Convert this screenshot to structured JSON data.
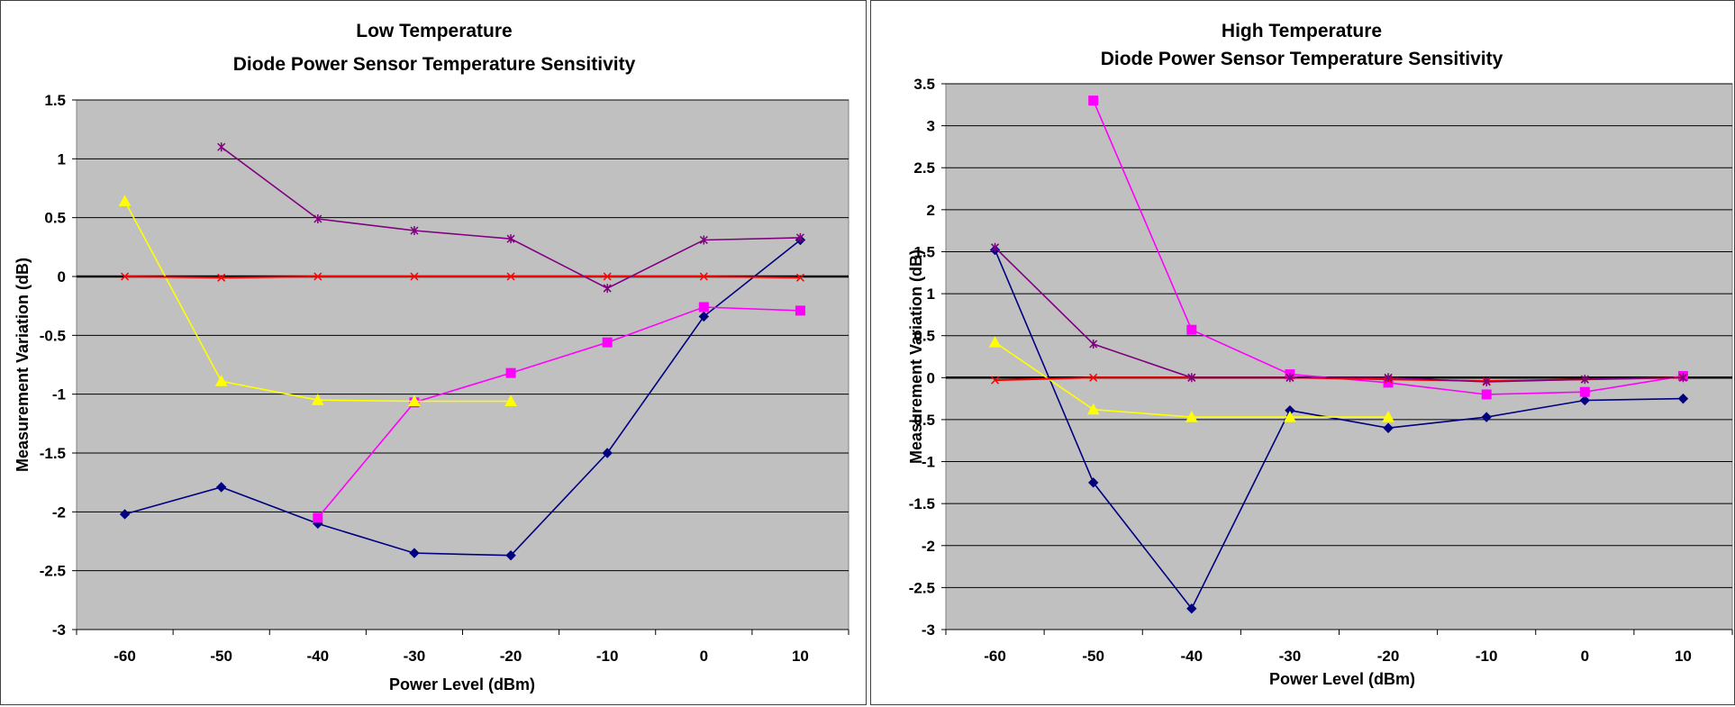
{
  "chart_data": [
    {
      "type": "line",
      "title_line1": "Low Temperature",
      "title_line2": "Diode Power Sensor Temperature Sensitivity",
      "xlabel": "Power Level (dBm)",
      "ylabel": "Measurement Variation (dB)",
      "x": [
        -60,
        -50,
        -40,
        -30,
        -20,
        -10,
        0,
        10
      ],
      "x_tick_labels": [
        "-60",
        "-50",
        "-40",
        "-30",
        "-20",
        "-10",
        "0",
        "10"
      ],
      "ylim": [
        -3,
        1.5
      ],
      "y_ticks": [
        -3,
        -2.5,
        -2,
        -1.5,
        -1,
        -0.5,
        0,
        0.5,
        1,
        1.5
      ],
      "y_tick_labels": [
        "-3",
        "-2.5",
        "-2",
        "-1.5",
        "-1",
        "-0.5",
        "0",
        "0.5",
        "1",
        "1.5"
      ],
      "grid": true,
      "background_color": "#c0c0c0",
      "series": [
        {
          "color": "#000080",
          "marker": "diamond",
          "values": [
            -2.02,
            -1.79,
            -2.1,
            -2.35,
            -2.37,
            -1.5,
            -0.34,
            0.31
          ]
        },
        {
          "color": "#ff00ff",
          "marker": "square",
          "values": [
            null,
            null,
            -2.05,
            -1.07,
            -0.82,
            -0.56,
            -0.26,
            -0.29
          ]
        },
        {
          "color": "#ffff00",
          "marker": "triangle",
          "values": [
            0.64,
            -0.89,
            -1.05,
            -1.06,
            -1.06,
            null,
            null,
            null
          ]
        },
        {
          "color": "#ff0000",
          "marker": "x",
          "values": [
            0,
            -0.01,
            0,
            0,
            0,
            0,
            0,
            -0.01
          ]
        },
        {
          "color": "#800080",
          "marker": "star",
          "values": [
            null,
            1.1,
            0.49,
            0.39,
            0.32,
            -0.1,
            0.31,
            0.33
          ]
        }
      ]
    },
    {
      "type": "line",
      "title_line1": "High Temperature",
      "title_line2": "Diode Power Sensor Temperature Sensitivity",
      "xlabel": "Power Level (dBm)",
      "ylabel": "Measurement Variation (dB)",
      "x": [
        -60,
        -50,
        -40,
        -30,
        -20,
        -10,
        0,
        10
      ],
      "x_tick_labels": [
        "-60",
        "-50",
        "-40",
        "-30",
        "-20",
        "-10",
        "0",
        "10"
      ],
      "ylim": [
        -3,
        3.5
      ],
      "y_ticks": [
        -3,
        -2.5,
        -2,
        -1.5,
        -1,
        -0.5,
        0,
        0.5,
        1,
        1.5,
        2,
        2.5,
        3,
        3.5
      ],
      "y_tick_labels": [
        "-3",
        "-2.5",
        "-2",
        "-1.5",
        "-1",
        "-0.5",
        "0",
        "0.5",
        "1",
        "1.5",
        "2",
        "2.5",
        "3",
        "3.5"
      ],
      "grid": true,
      "background_color": "#c0c0c0",
      "series": [
        {
          "color": "#000080",
          "marker": "diamond",
          "values": [
            1.52,
            -1.25,
            -2.75,
            -0.39,
            -0.6,
            -0.47,
            -0.27,
            -0.25
          ]
        },
        {
          "color": "#ff00ff",
          "marker": "square",
          "values": [
            null,
            3.3,
            0.57,
            0.04,
            -0.06,
            -0.2,
            -0.17,
            0.02
          ]
        },
        {
          "color": "#ffff00",
          "marker": "triangle",
          "values": [
            0.42,
            -0.38,
            -0.47,
            -0.47,
            -0.47,
            null,
            null,
            null
          ]
        },
        {
          "color": "#ff0000",
          "marker": "x",
          "values": [
            -0.03,
            0,
            0,
            0,
            -0.02,
            -0.04,
            -0.02,
            0
          ]
        },
        {
          "color": "#800080",
          "marker": "star",
          "values": [
            1.55,
            0.4,
            0,
            0,
            0,
            -0.05,
            -0.02,
            0
          ]
        }
      ]
    }
  ]
}
